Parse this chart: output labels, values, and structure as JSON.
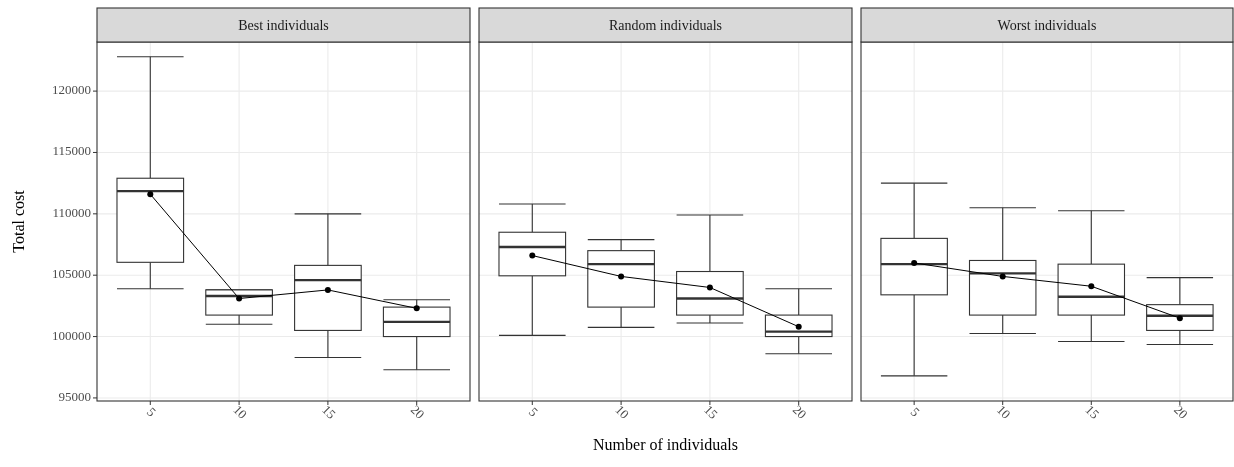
{
  "chart_data": [
    {
      "type": "box",
      "title": "Best individuals",
      "ylabel": "Total cost",
      "categories": [
        "5",
        "10",
        "15",
        "20"
      ],
      "ylim": [
        94750,
        124000
      ],
      "yticks": [
        95000,
        100000,
        105000,
        110000,
        115000,
        120000
      ],
      "grid": true,
      "color": "#333333",
      "boxes": [
        {
          "low": 103900,
          "q1": 106050,
          "median": 111850,
          "q3": 112900,
          "high": 122800
        },
        {
          "low": 101000,
          "q1": 101750,
          "median": 103300,
          "q3": 103800,
          "high": 103800
        },
        {
          "low": 98300,
          "q1": 100500,
          "median": 104600,
          "q3": 105800,
          "high": 110000
        },
        {
          "low": 97300,
          "q1": 100000,
          "median": 101200,
          "q3": 102400,
          "high": 103000
        }
      ],
      "series": [
        {
          "type": "line",
          "color": "#000000",
          "marker": "circle",
          "values": [
            111600,
            103100,
            103800,
            102300
          ]
        }
      ]
    },
    {
      "type": "box",
      "title": "Random individuals",
      "xlabel": "Number of individuals",
      "categories": [
        "5",
        "10",
        "15",
        "20"
      ],
      "ylim": [
        94750,
        124000
      ],
      "yticks": [
        95000,
        100000,
        105000,
        110000,
        115000,
        120000
      ],
      "grid": true,
      "tick_labels": "x",
      "color": "#333333",
      "boxes": [
        {
          "low": 100100,
          "q1": 104950,
          "median": 107300,
          "q3": 108500,
          "high": 110800
        },
        {
          "low": 100750,
          "q1": 102400,
          "median": 105900,
          "q3": 107000,
          "high": 107900
        },
        {
          "low": 101100,
          "q1": 101750,
          "median": 103100,
          "q3": 105300,
          "high": 109900
        },
        {
          "low": 98600,
          "q1": 100000,
          "median": 100400,
          "q3": 101750,
          "high": 103900
        }
      ],
      "series": [
        {
          "type": "line",
          "color": "#000000",
          "marker": "circle",
          "values": [
            106600,
            104900,
            104000,
            100800
          ]
        }
      ]
    },
    {
      "type": "box",
      "title": "Worst individuals",
      "categories": [
        "5",
        "10",
        "15",
        "20"
      ],
      "ylim": [
        94750,
        124000
      ],
      "yticks": [
        95000,
        100000,
        105000,
        110000,
        115000,
        120000
      ],
      "grid": true,
      "tick_labels": "x",
      "color": "#333333",
      "boxes": [
        {
          "low": 96800,
          "q1": 103400,
          "median": 105900,
          "q3": 108000,
          "high": 112500
        },
        {
          "low": 100250,
          "q1": 101750,
          "median": 105150,
          "q3": 106200,
          "high": 110500
        },
        {
          "low": 99600,
          "q1": 101750,
          "median": 103250,
          "q3": 105900,
          "high": 110250
        },
        {
          "low": 99350,
          "q1": 100500,
          "median": 101700,
          "q3": 102600,
          "high": 104800
        }
      ],
      "series": [
        {
          "type": "line",
          "color": "#000000",
          "marker": "circle",
          "values": [
            106000,
            104900,
            104100,
            101500
          ]
        }
      ]
    }
  ]
}
